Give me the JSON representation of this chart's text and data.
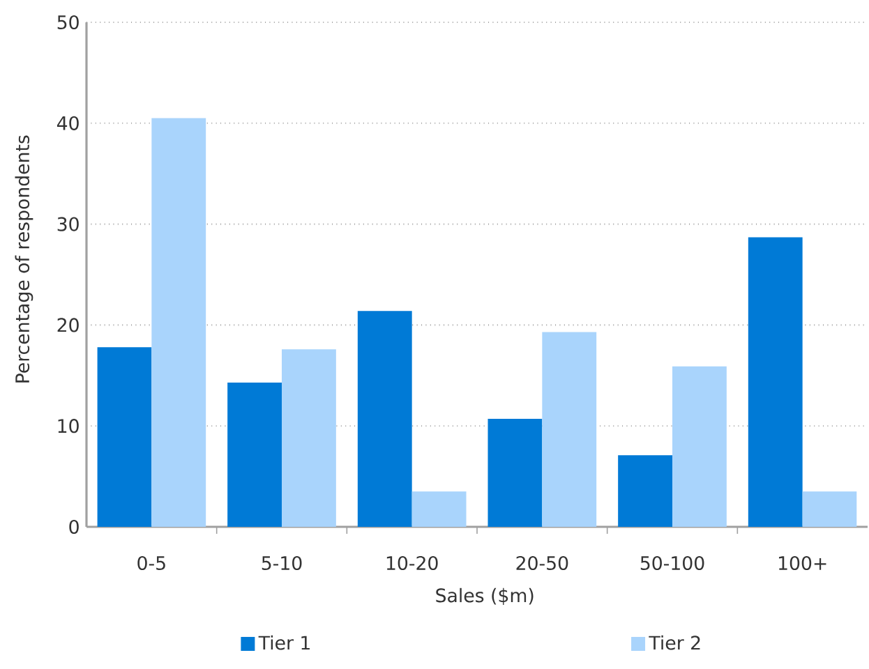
{
  "chart_data": {
    "type": "bar",
    "xlabel": "Sales ($m)",
    "ylabel": "Percentage of respondents",
    "categories": [
      "0-5",
      "5-10",
      "10-20",
      "20-50",
      "50-100",
      "100+"
    ],
    "series": [
      {
        "name": "Tier 1",
        "color": "#007ad6",
        "values": [
          17.8,
          14.3,
          21.4,
          10.7,
          7.1,
          28.7
        ]
      },
      {
        "name": "Tier 2",
        "color": "#a9d4fc",
        "values": [
          40.5,
          17.6,
          3.5,
          19.3,
          15.9,
          3.5
        ]
      }
    ],
    "ylim": [
      0,
      50
    ],
    "yticks": [
      0,
      10,
      20,
      30,
      40,
      50
    ],
    "grid": "y",
    "legend": "bottom"
  }
}
